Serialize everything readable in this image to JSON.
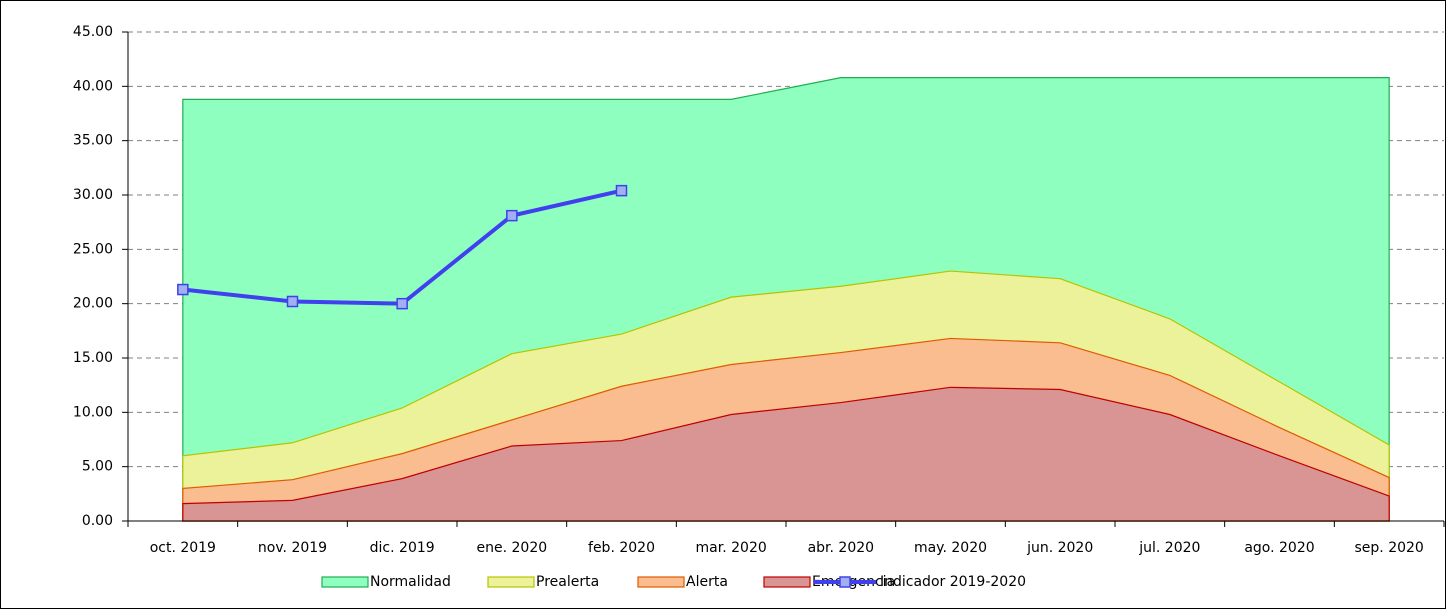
{
  "chart_data": {
    "type": "area",
    "categories": [
      "oct. 2019",
      "nov. 2019",
      "dic. 2019",
      "ene. 2020",
      "feb. 2020",
      "mar. 2020",
      "abr. 2020",
      "may. 2020",
      "jun. 2020",
      "jul. 2020",
      "ago. 2020",
      "sep. 2020"
    ],
    "series": [
      {
        "name": "Normalidad",
        "color": "#8fffc0",
        "line_color": "#1fae4f",
        "values": [
          38.8,
          38.8,
          38.8,
          38.8,
          38.8,
          38.8,
          40.8,
          40.8,
          40.8,
          40.8,
          40.8,
          40.8
        ]
      },
      {
        "name": "Prealerta",
        "color": "#ebf29a",
        "line_color": "#b5c400",
        "values": [
          6.0,
          7.2,
          10.4,
          15.4,
          17.2,
          20.6,
          21.6,
          23.0,
          22.3,
          18.6,
          12.8,
          7.0
        ]
      },
      {
        "name": "Alerta",
        "color": "#f9bd8f",
        "line_color": "#e05a00",
        "values": [
          3.0,
          3.8,
          6.2,
          9.3,
          12.4,
          14.4,
          15.5,
          16.8,
          16.4,
          13.4,
          8.6,
          4.0
        ]
      },
      {
        "name": "Emergencia",
        "color": "#d99593",
        "line_color": "#c00000",
        "values": [
          1.6,
          1.9,
          3.9,
          6.9,
          7.4,
          9.8,
          10.9,
          12.3,
          12.1,
          9.8,
          6.0,
          2.3
        ]
      },
      {
        "name": "Indicador 2019-2020",
        "type": "line",
        "color": "#4040ee",
        "marker_color": "#a0b0f0",
        "values": [
          21.3,
          20.2,
          20.0,
          28.1,
          30.4,
          null,
          null,
          null,
          null,
          null,
          null,
          null
        ]
      }
    ],
    "ylim": [
      0,
      45
    ],
    "yticks": [
      {
        "value": 0,
        "label": "0.00"
      },
      {
        "value": 5,
        "label": "5.00"
      },
      {
        "value": 10,
        "label": "10.00"
      },
      {
        "value": 15,
        "label": "15.00"
      },
      {
        "value": 20,
        "label": "20.00"
      },
      {
        "value": 25,
        "label": "25.00"
      },
      {
        "value": 30,
        "label": "30.00"
      },
      {
        "value": 35,
        "label": "35.00"
      },
      {
        "value": 40,
        "label": "40.00"
      },
      {
        "value": 45,
        "label": "45.00"
      }
    ],
    "grid": true,
    "legend": "bottom"
  }
}
